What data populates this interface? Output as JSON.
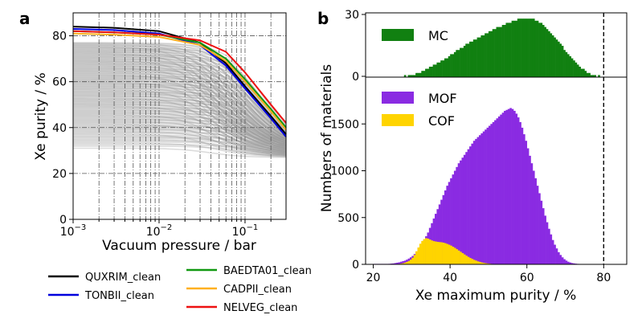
{
  "chart_data": [
    {
      "panel": "a",
      "type": "line",
      "title": "",
      "xlabel": "Vacuum pressure / bar",
      "ylabel": "Xe purity / %",
      "xscale": "log",
      "xlim": [
        0.001,
        0.3
      ],
      "ylim": [
        0,
        90
      ],
      "xticks": [
        {
          "v": 0.001,
          "base": "10",
          "exp": "−3"
        },
        {
          "v": 0.01,
          "base": "10",
          "exp": "−2"
        },
        {
          "v": 0.1,
          "base": "10",
          "exp": "−1"
        }
      ],
      "yticks": [
        0,
        20,
        40,
        60,
        80
      ],
      "grid": true,
      "legend_position": "below",
      "background_band": {
        "color": "#9a9a9a",
        "top_start": 77,
        "top_end": 35,
        "bottom_start": 31,
        "bottom_end": 27
      },
      "series": [
        {
          "name": "QUXRIM_clean",
          "color": "#000000",
          "x": [
            0.001,
            0.003,
            0.01,
            0.03,
            0.06,
            0.1,
            0.2,
            0.3
          ],
          "y": [
            84,
            83.5,
            82,
            77,
            68,
            58,
            45,
            37
          ]
        },
        {
          "name": "TONBII_clean",
          "color": "#0000dd",
          "x": [
            0.001,
            0.003,
            0.01,
            0.03,
            0.06,
            0.1,
            0.2,
            0.3
          ],
          "y": [
            83,
            82.5,
            81,
            76,
            67,
            57,
            44,
            36
          ]
        },
        {
          "name": "BAEDTA01_clean",
          "color": "#119911",
          "x": [
            0.001,
            0.003,
            0.01,
            0.03,
            0.06,
            0.1,
            0.2,
            0.3
          ],
          "y": [
            82,
            81.5,
            80.5,
            77,
            70,
            61,
            48,
            40
          ]
        },
        {
          "name": "CADPII_clean",
          "color": "#ffb020",
          "x": [
            0.001,
            0.003,
            0.01,
            0.03,
            0.06,
            0.1,
            0.2,
            0.3
          ],
          "y": [
            81,
            80.5,
            79.5,
            76,
            69,
            60,
            47,
            39
          ]
        },
        {
          "name": "NELVEG_clean",
          "color": "#ee1111",
          "x": [
            0.001,
            0.003,
            0.01,
            0.03,
            0.06,
            0.1,
            0.2,
            0.3
          ],
          "y": [
            82,
            81.5,
            80.5,
            78,
            73,
            64,
            50,
            42
          ]
        }
      ]
    },
    {
      "panel": "b",
      "type": "bar",
      "title": "",
      "xlabel": "Xe maximum purity / %",
      "ylabel": "Numbers of materials",
      "xlim": [
        18,
        86
      ],
      "xticks": [
        20,
        40,
        60,
        80
      ],
      "vline": 80,
      "subplots": [
        {
          "name": "top",
          "ylim": [
            0,
            30
          ],
          "yticks": [
            0,
            30
          ],
          "series": [
            {
              "name": "MC",
              "color": "#118011",
              "bin_width": 0.5,
              "bin_start": 28,
              "values": [
                1,
                0,
                1,
                1,
                1,
                1,
                2,
                2,
                2,
                3,
                3,
                4,
                4,
                5,
                5,
                6,
                6,
                7,
                7,
                8,
                8,
                9,
                9,
                10,
                11,
                11,
                12,
                13,
                13,
                14,
                14,
                15,
                16,
                16,
                17,
                17,
                18,
                18,
                19,
                19,
                20,
                20,
                21,
                21,
                22,
                22,
                23,
                23,
                24,
                24,
                24,
                25,
                25,
                26,
                26,
                26,
                27,
                27,
                27,
                28,
                28,
                28,
                28,
                28,
                28,
                28,
                28,
                28,
                27,
                27,
                26,
                26,
                25,
                24,
                23,
                22,
                21,
                20,
                19,
                18,
                17,
                16,
                15,
                13,
                12,
                11,
                10,
                9,
                8,
                7,
                6,
                5,
                4,
                4,
                3,
                2,
                2,
                1,
                1,
                1,
                0,
                1
              ]
            }
          ]
        },
        {
          "name": "bottom",
          "ylim": [
            0,
            2000
          ],
          "yticks": [
            0,
            500,
            1000,
            1500
          ],
          "series": [
            {
              "name": "MOF",
              "color": "#8a2be2",
              "bin_width": 0.5,
              "bin_start": 20,
              "values": [
                5,
                5,
                5,
                5,
                5,
                5,
                5,
                5,
                6,
                8,
                10,
                14,
                18,
                22,
                28,
                34,
                40,
                50,
                62,
                75,
                90,
                110,
                135,
                160,
                190,
                220,
                260,
                300,
                340,
                390,
                440,
                490,
                540,
                590,
                640,
                690,
                740,
                790,
                840,
                880,
                920,
                960,
                1000,
                1040,
                1080,
                1110,
                1140,
                1170,
                1200,
                1230,
                1260,
                1290,
                1320,
                1340,
                1360,
                1380,
                1400,
                1420,
                1440,
                1460,
                1480,
                1500,
                1520,
                1540,
                1560,
                1580,
                1600,
                1620,
                1640,
                1650,
                1660,
                1670,
                1660,
                1640,
                1610,
                1570,
                1520,
                1460,
                1390,
                1320,
                1240,
                1160,
                1080,
                1000,
                920,
                840,
                760,
                680,
                600,
                520,
                450,
                380,
                320,
                260,
                210,
                170,
                130,
                100,
                75,
                55,
                40,
                28,
                20,
                14,
                10,
                7,
                5,
                3,
                2,
                1
              ]
            },
            {
              "name": "COF",
              "color": "#ffd400",
              "bin_width": 0.5,
              "bin_start": 20,
              "values": [
                0,
                0,
                0,
                0,
                0,
                0,
                0,
                0,
                0,
                0,
                1,
                2,
                3,
                5,
                8,
                12,
                18,
                26,
                36,
                50,
                70,
                100,
                140,
                180,
                220,
                250,
                270,
                280,
                275,
                265,
                255,
                248,
                244,
                240,
                238,
                236,
                232,
                226,
                218,
                210,
                200,
                188,
                176,
                162,
                148,
                134,
                120,
                106,
                92,
                80,
                68,
                58,
                48,
                40,
                32,
                26,
                20,
                16,
                12,
                9,
                7,
                5,
                4,
                3,
                2,
                1,
                1,
                1,
                0,
                0,
                0,
                0,
                0,
                0,
                0,
                0,
                0,
                0,
                0,
                0,
                0,
                0,
                0,
                0,
                0,
                0,
                0,
                0,
                0,
                0,
                0,
                0,
                0,
                0,
                0,
                0,
                0,
                0,
                0,
                0,
                0,
                0,
                0,
                0,
                0,
                0,
                0,
                0
              ]
            }
          ]
        }
      ]
    }
  ]
}
